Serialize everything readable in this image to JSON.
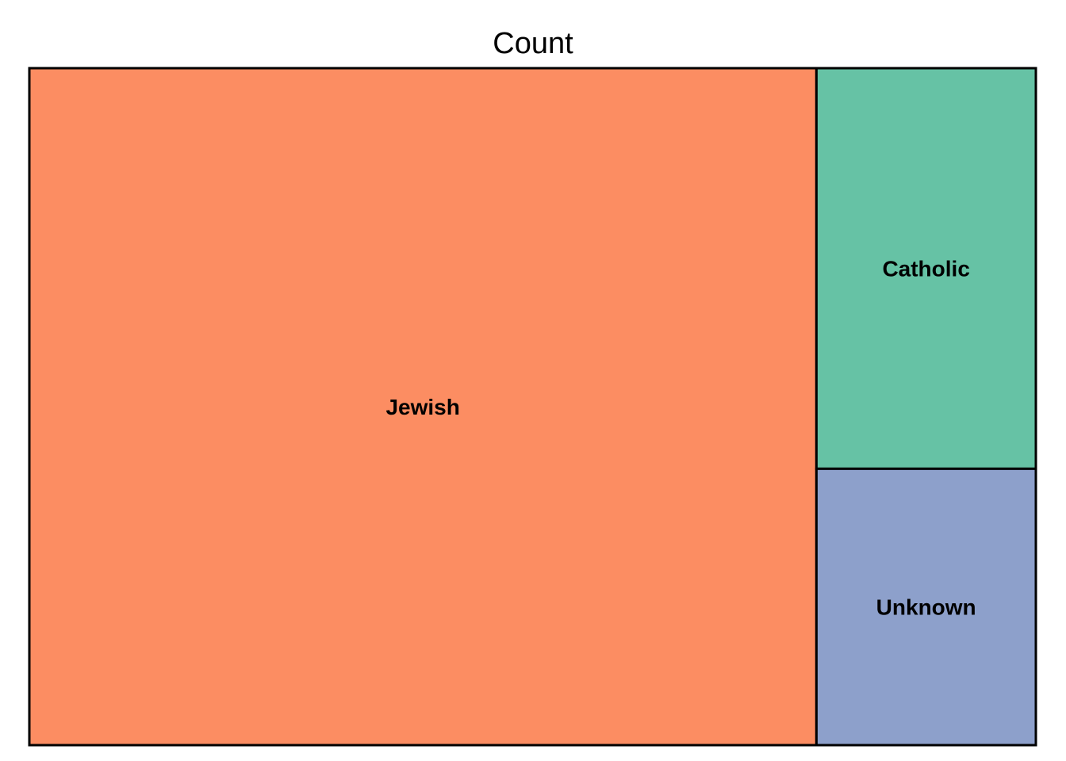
{
  "chart_data": {
    "type": "treemap",
    "title": "Count",
    "tiles": [
      {
        "label": "Jewish",
        "value": 78.2,
        "color": "#fc8d62"
      },
      {
        "label": "Catholic",
        "value": 12.9,
        "color": "#66c2a5"
      },
      {
        "label": "Unknown",
        "value": 8.9,
        "color": "#8da0cb"
      }
    ]
  }
}
